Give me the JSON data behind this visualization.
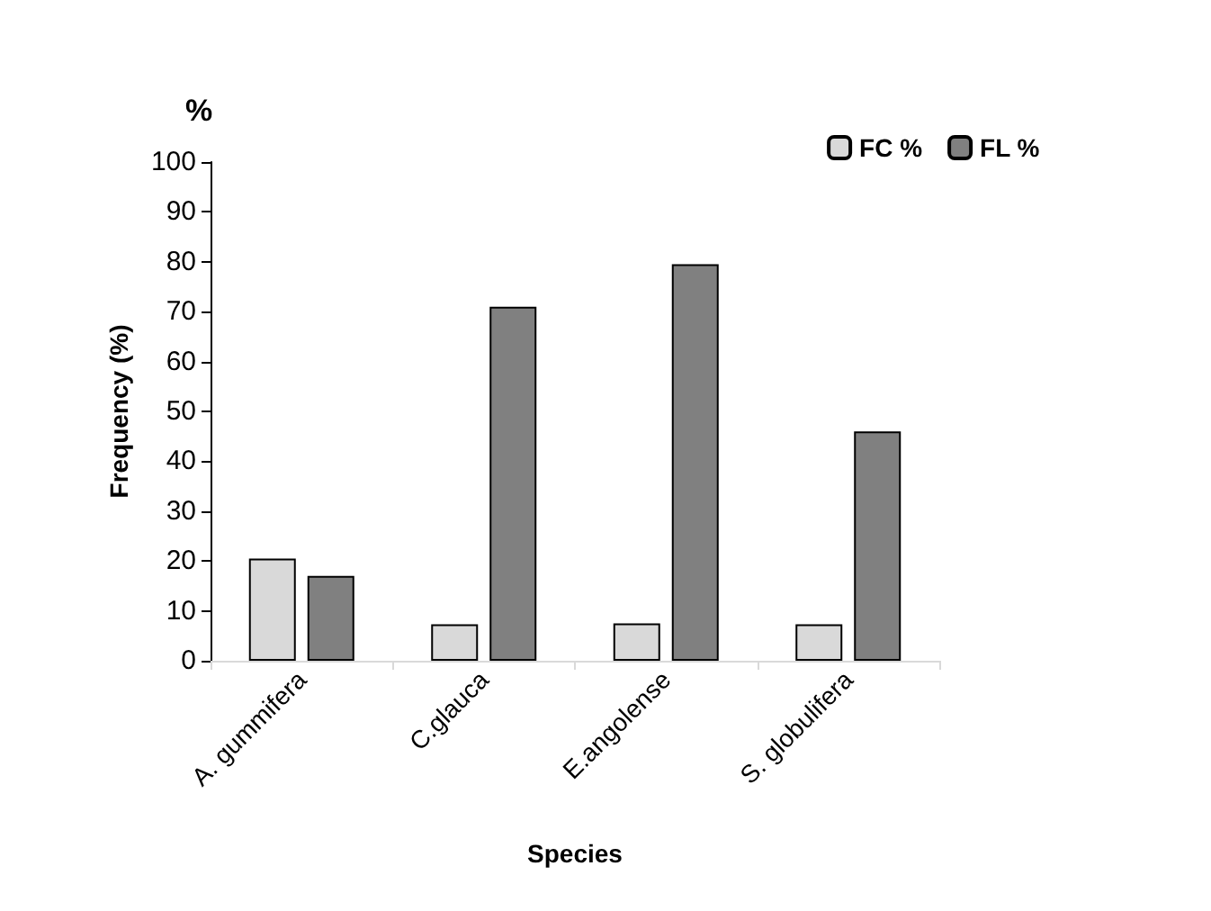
{
  "chart_data": {
    "type": "bar",
    "xlabel": "Species",
    "ylabel": "Frequency (%)",
    "annotations": [
      "%"
    ],
    "categories": [
      "A. gummifera",
      "C.glauca",
      "E.angolense",
      "S. globulifera"
    ],
    "series": [
      {
        "name": "FC %",
        "color": "#d9d9d9",
        "values": [
          20.5,
          7.3,
          7.5,
          7.3
        ]
      },
      {
        "name": "FL %",
        "color": "#808080",
        "values": [
          17,
          71,
          79.5,
          46
        ]
      }
    ],
    "ylim": [
      0,
      100
    ],
    "yticks": [
      0,
      10,
      20,
      30,
      40,
      50,
      60,
      70,
      80,
      90,
      100
    ],
    "grid": false,
    "legend": "top right"
  }
}
